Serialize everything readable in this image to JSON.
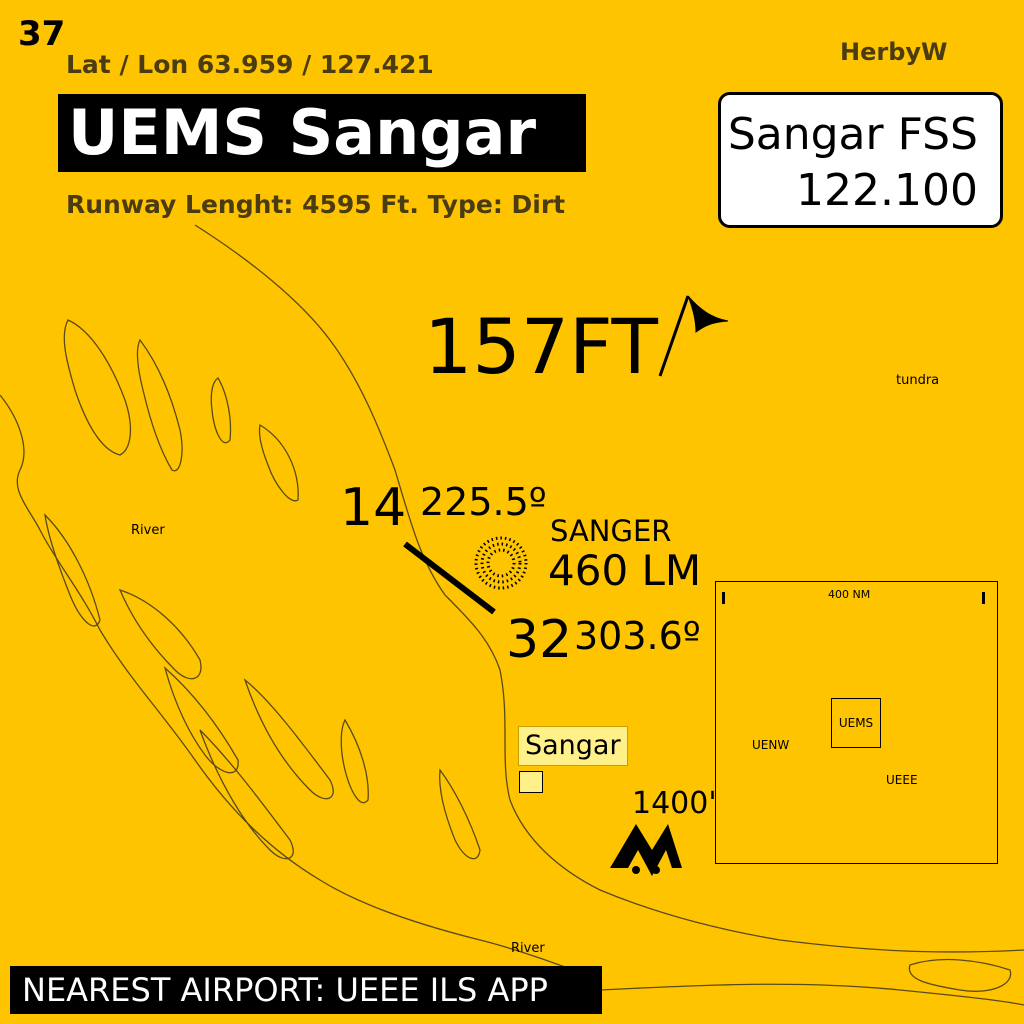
{
  "page": {
    "number": "37",
    "author": "HerbyW"
  },
  "airport": {
    "latlon": "Lat / Lon 63.959 / 127.421",
    "title": "UEMS Sangar",
    "runway_info": "Runway Lenght: 4595 Ft. Type: Dirt",
    "elevation": "157FT"
  },
  "fss": {
    "name": "Sangar FSS",
    "frequency": "122.100"
  },
  "runway": {
    "end_a": {
      "number": "14",
      "heading": "225.5º"
    },
    "end_b": {
      "number": "32",
      "heading": "303.6º"
    }
  },
  "ndb": {
    "name": "SANGER",
    "frequency": "460 LM"
  },
  "map_labels": {
    "tundra": "tundra",
    "river_1": "River",
    "river_2": "River",
    "town": "Sangar"
  },
  "peak": {
    "height": "1400'"
  },
  "inset": {
    "scale": "400 NM",
    "center": "UEMS",
    "west": "UENW",
    "east": "UEEE"
  },
  "nearest_airport": "NEAREST  AIRPORT: UEEE ILS APP",
  "colors": {
    "background": "#FFC400",
    "town_fill": "#FFF08A",
    "line": "#555555"
  }
}
